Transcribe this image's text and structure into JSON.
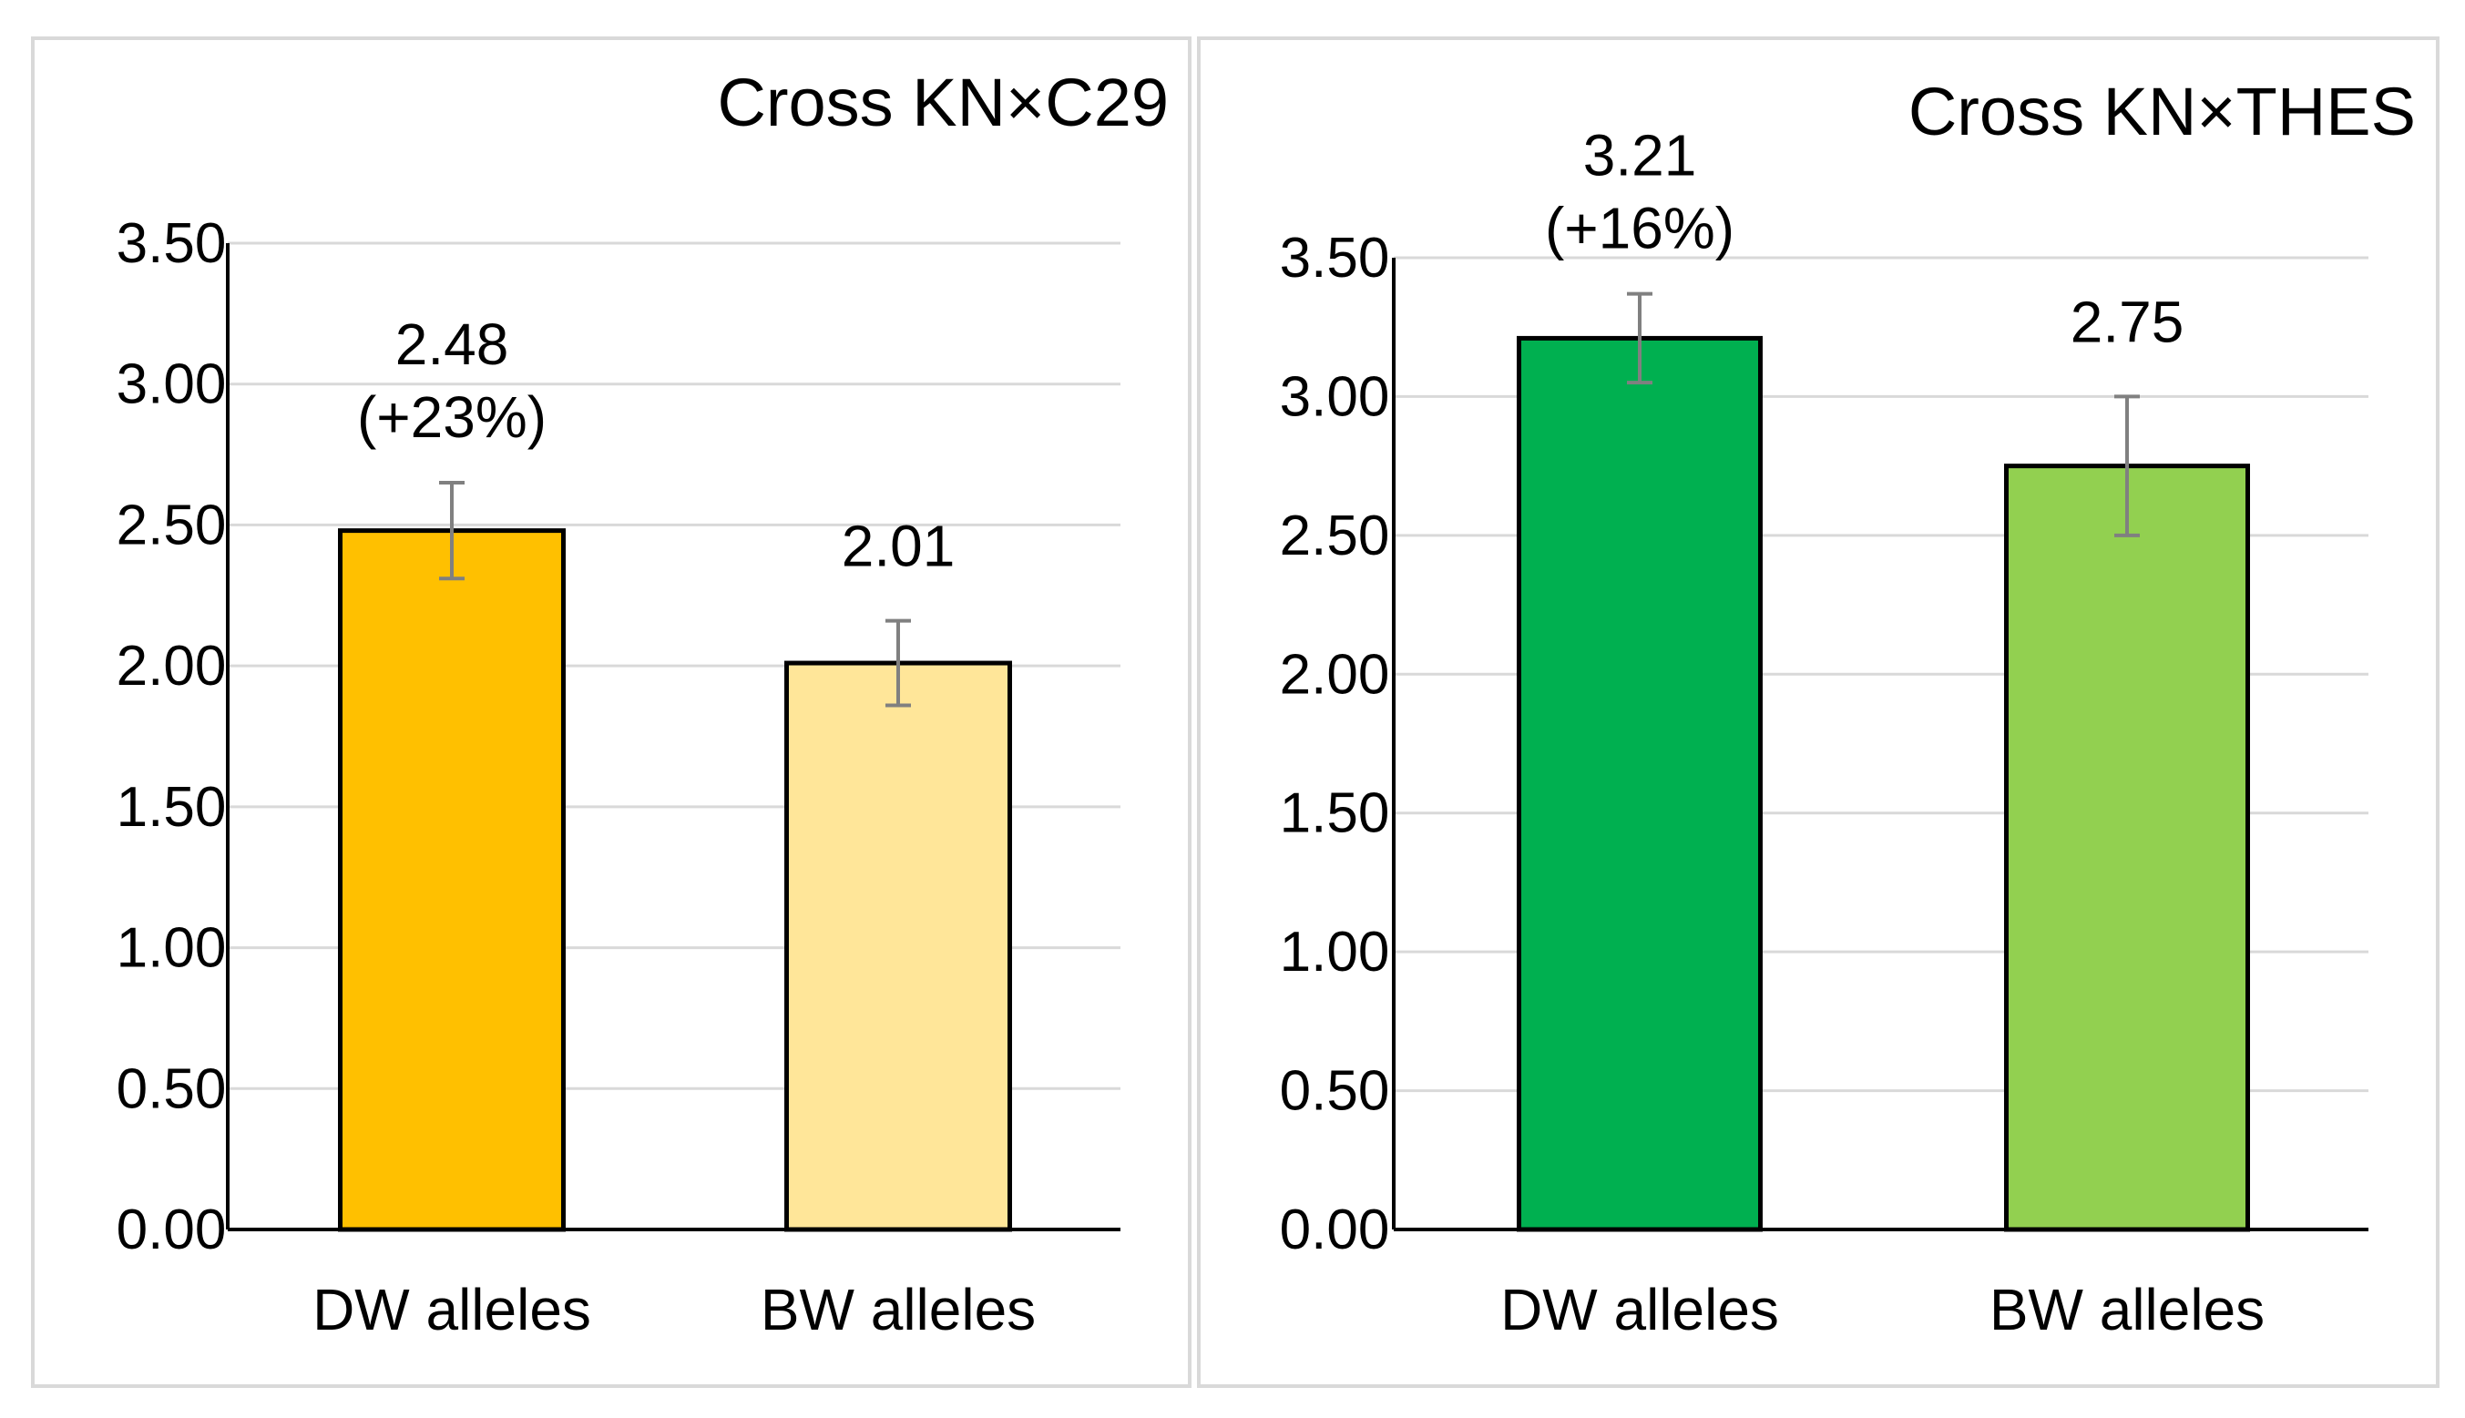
{
  "chart_data": [
    {
      "type": "bar",
      "title": "Cross KN×C29",
      "categories": [
        "DW alleles",
        "BW alleles"
      ],
      "values": [
        2.48,
        2.01
      ],
      "error": [
        0.17,
        0.15
      ],
      "data_labels": [
        "2.48",
        "2.01"
      ],
      "annotations": [
        "(+23%)",
        ""
      ],
      "colors": [
        "#FFC000",
        "#FFE699"
      ],
      "ylim": [
        0,
        3.5
      ],
      "yticks": [
        "0.00",
        "0.50",
        "1.00",
        "1.50",
        "2.00",
        "2.50",
        "3.00",
        "3.50"
      ],
      "grid": true,
      "xlabel": "",
      "ylabel": ""
    },
    {
      "type": "bar",
      "title": "Cross KN×THES",
      "categories": [
        "DW alleles",
        "BW alleles"
      ],
      "values": [
        3.21,
        2.75
      ],
      "error": [
        0.16,
        0.25
      ],
      "data_labels": [
        "3.21",
        "2.75"
      ],
      "annotations": [
        "(+16%)",
        ""
      ],
      "colors": [
        "#00B050",
        "#92D050"
      ],
      "ylim": [
        0,
        3.5
      ],
      "yticks": [
        "0.00",
        "0.50",
        "1.00",
        "1.50",
        "2.00",
        "2.50",
        "3.00",
        "3.50"
      ],
      "grid": true,
      "xlabel": "",
      "ylabel": ""
    }
  ]
}
